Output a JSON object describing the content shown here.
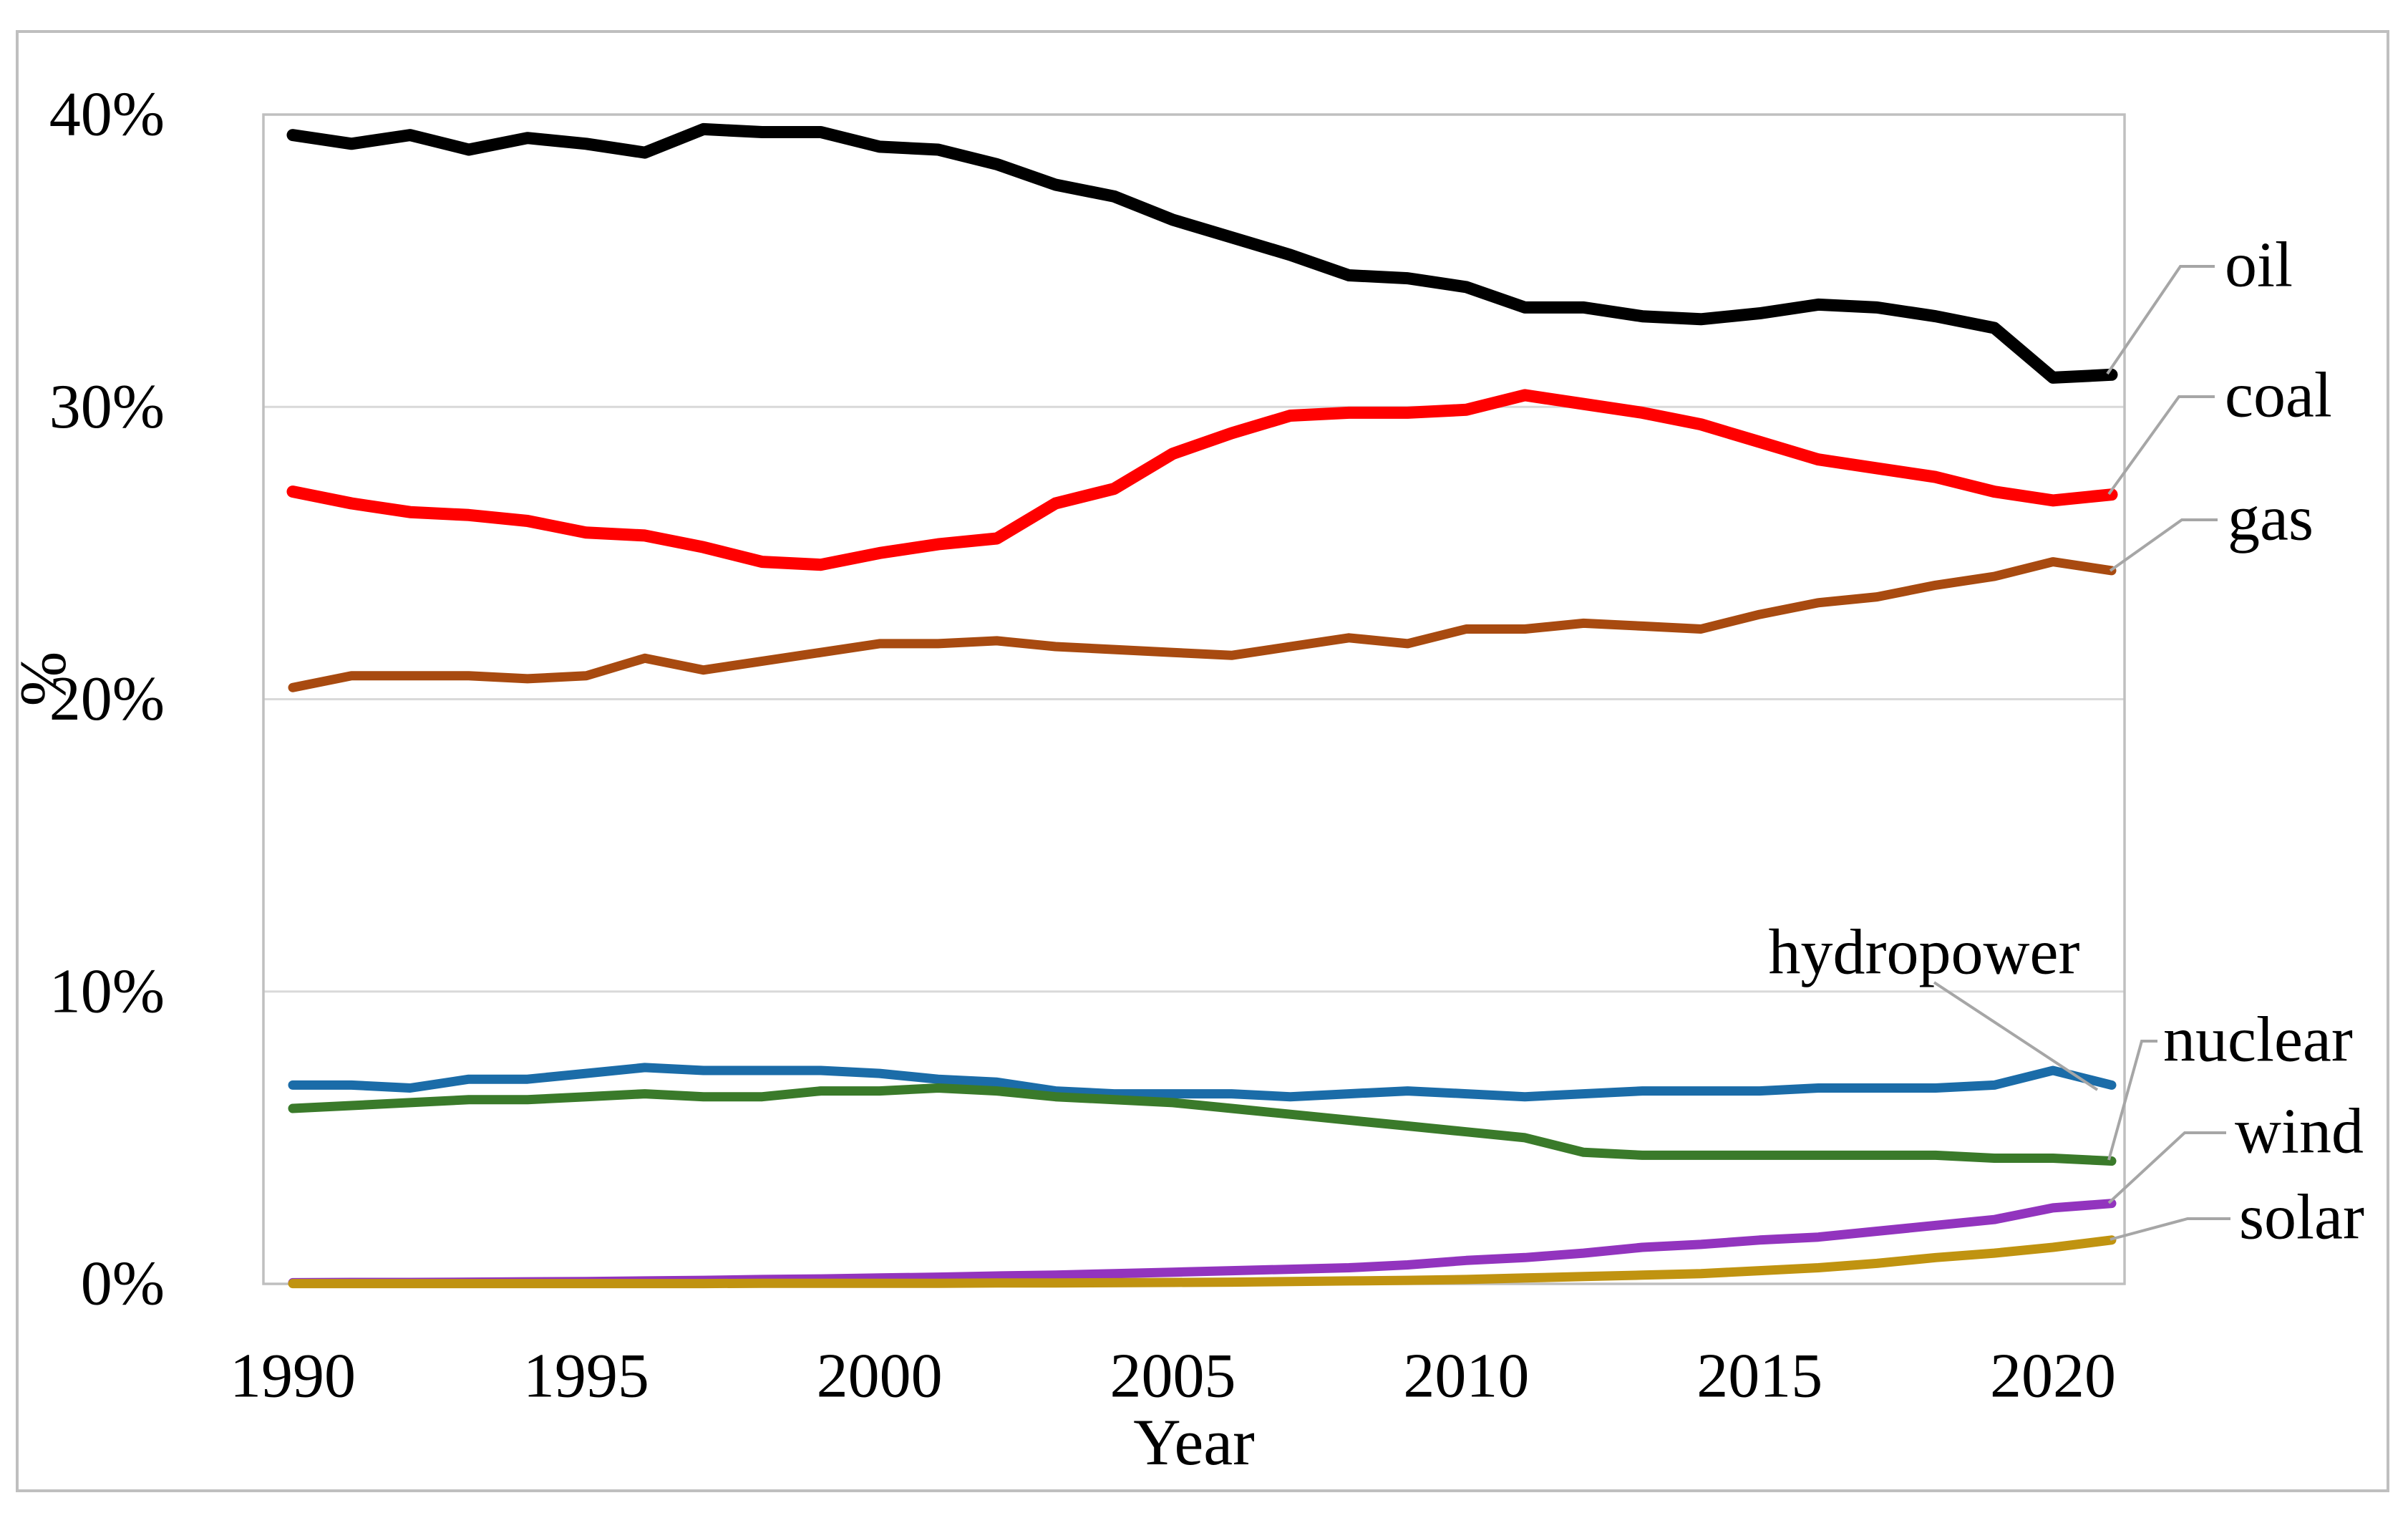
{
  "figure": {
    "y_axis": {
      "title": "%",
      "tick_labels": [
        "0%",
        "10%",
        "20%",
        "30%",
        "40%"
      ],
      "tick_values": [
        0,
        10,
        20,
        30,
        40
      ]
    },
    "x_axis": {
      "title": "Year",
      "tick_labels": [
        "1990",
        "1995",
        "2000",
        "2005",
        "2010",
        "2015",
        "2020"
      ],
      "tick_values": [
        1990,
        1995,
        2000,
        2005,
        2010,
        2015,
        2020
      ]
    },
    "labels": {
      "oil": "oil",
      "coal": "coal",
      "gas": "gas",
      "hydropower": "hydropower",
      "nuclear": "nuclear",
      "wind": "wind",
      "solar": "solar"
    },
    "colors": {
      "oil": "#000000",
      "coal": "#FF0000",
      "gas": "#A84A10",
      "hydropower": "#1B6CA8",
      "nuclear": "#3A7A2A",
      "wind": "#9234BE",
      "solar": "#C09310",
      "grid": "#D9D9D9",
      "border": "#BFBFBF",
      "leader": "#A6A6A6"
    }
  },
  "chart_data": {
    "type": "line",
    "title": "",
    "xlabel": "Year",
    "ylabel": "%",
    "ylim": [
      0,
      40
    ],
    "grid": "horizontal",
    "legend": "direct-line-labels-right",
    "x": [
      1990,
      1991,
      1992,
      1993,
      1994,
      1995,
      1996,
      1997,
      1998,
      1999,
      2000,
      2001,
      2002,
      2003,
      2004,
      2005,
      2006,
      2007,
      2008,
      2009,
      2010,
      2011,
      2012,
      2013,
      2014,
      2015,
      2016,
      2017,
      2018,
      2019,
      2020,
      2021
    ],
    "series": [
      {
        "name": "oil",
        "color": "#000000",
        "values": [
          39.3,
          39.0,
          39.3,
          38.8,
          39.2,
          39.0,
          38.7,
          39.5,
          39.4,
          39.4,
          38.9,
          38.8,
          38.3,
          37.6,
          37.2,
          36.4,
          35.8,
          35.2,
          34.5,
          34.4,
          34.1,
          33.4,
          33.4,
          33.1,
          33.0,
          33.2,
          33.5,
          33.4,
          33.1,
          32.7,
          31.0,
          31.1
        ]
      },
      {
        "name": "coal",
        "color": "#FF0000",
        "values": [
          27.1,
          26.7,
          26.4,
          26.3,
          26.1,
          25.7,
          25.6,
          25.2,
          24.7,
          24.6,
          25.0,
          25.3,
          25.5,
          26.7,
          27.2,
          28.4,
          29.1,
          29.7,
          29.8,
          29.8,
          29.9,
          30.4,
          30.1,
          29.8,
          29.4,
          28.8,
          28.2,
          27.9,
          27.6,
          27.1,
          26.8,
          27.0
        ]
      },
      {
        "name": "gas",
        "color": "#A84A10",
        "values": [
          20.4,
          20.8,
          20.8,
          20.8,
          20.7,
          20.8,
          21.4,
          21.0,
          21.3,
          21.6,
          21.9,
          21.9,
          22.0,
          21.8,
          21.7,
          21.6,
          21.5,
          21.8,
          22.1,
          21.9,
          22.4,
          22.4,
          22.6,
          22.5,
          22.4,
          22.9,
          23.3,
          23.5,
          23.9,
          24.2,
          24.7,
          24.4
        ]
      },
      {
        "name": "hydropower",
        "color": "#1B6CA8",
        "values": [
          6.8,
          6.8,
          6.7,
          7.0,
          7.0,
          7.2,
          7.4,
          7.3,
          7.3,
          7.3,
          7.2,
          7.0,
          6.9,
          6.6,
          6.5,
          6.5,
          6.5,
          6.4,
          6.5,
          6.6,
          6.5,
          6.4,
          6.5,
          6.6,
          6.6,
          6.6,
          6.7,
          6.7,
          6.7,
          6.8,
          7.3,
          6.8
        ]
      },
      {
        "name": "nuclear",
        "color": "#3A7A2A",
        "values": [
          6.0,
          6.1,
          6.2,
          6.3,
          6.3,
          6.4,
          6.5,
          6.4,
          6.4,
          6.6,
          6.6,
          6.7,
          6.6,
          6.4,
          6.3,
          6.2,
          6.0,
          5.8,
          5.6,
          5.4,
          5.2,
          5.0,
          4.5,
          4.4,
          4.4,
          4.4,
          4.4,
          4.4,
          4.4,
          4.3,
          4.3,
          4.2
        ]
      },
      {
        "name": "wind",
        "color": "#9234BE",
        "values": [
          0.04,
          0.05,
          0.05,
          0.06,
          0.07,
          0.08,
          0.1,
          0.12,
          0.15,
          0.17,
          0.2,
          0.23,
          0.27,
          0.3,
          0.35,
          0.4,
          0.45,
          0.5,
          0.55,
          0.65,
          0.8,
          0.9,
          1.05,
          1.25,
          1.35,
          1.5,
          1.6,
          1.8,
          2.0,
          2.2,
          2.6,
          2.75
        ]
      },
      {
        "name": "solar",
        "color": "#C09310",
        "values": [
          0.01,
          0.01,
          0.01,
          0.01,
          0.01,
          0.01,
          0.01,
          0.01,
          0.02,
          0.02,
          0.02,
          0.02,
          0.03,
          0.03,
          0.04,
          0.05,
          0.06,
          0.08,
          0.1,
          0.12,
          0.15,
          0.2,
          0.25,
          0.3,
          0.35,
          0.45,
          0.55,
          0.7,
          0.9,
          1.05,
          1.25,
          1.5
        ]
      }
    ]
  }
}
